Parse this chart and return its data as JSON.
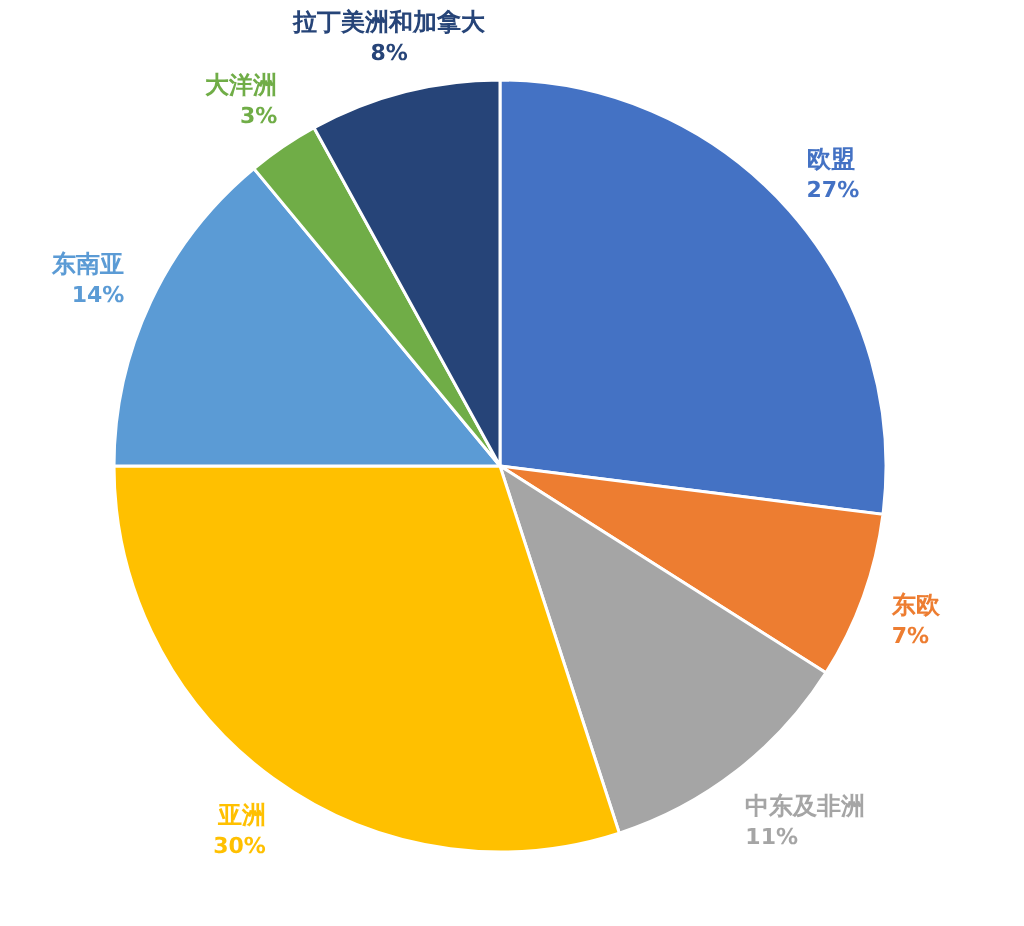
{
  "chart_data": {
    "type": "pie",
    "categories": [
      "欧盟",
      "东欧",
      "中东及非洲",
      "亚洲",
      "东南亚",
      "大洋洲",
      "拉丁美洲和加拿大"
    ],
    "values": [
      27,
      7,
      11,
      30,
      14,
      3,
      8
    ],
    "colors": [
      "#4472c4",
      "#ed7d31",
      "#a5a5a5",
      "#ffc000",
      "#5b9bd5",
      "#70ad47",
      "#264478"
    ],
    "value_labels": [
      "27%",
      "7%",
      "11%",
      "30%",
      "14%",
      "3%",
      "8%"
    ]
  }
}
